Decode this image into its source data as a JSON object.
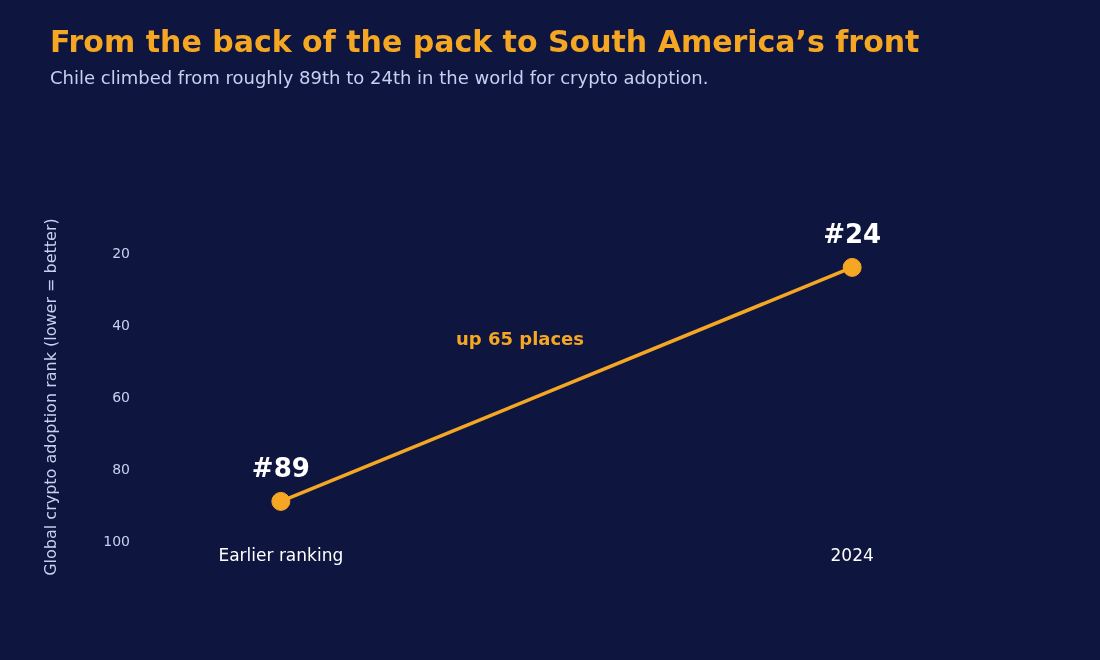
{
  "chart_data": {
    "type": "line",
    "title": "From the back of the pack to South America’s front",
    "subtitle": "Chile climbed from roughly 89th to 24th in the world for crypto adoption.",
    "ylabel": "Global crypto adoption rank (lower = better)",
    "categories": [
      "Earlier ranking",
      "2024"
    ],
    "series": [
      {
        "color": "#f5a623",
        "values": [
          89,
          24
        ],
        "value_labels": [
          "#89",
          "#24"
        ]
      }
    ],
    "ylim": [
      100,
      20
    ],
    "yticks": [
      20,
      40,
      60,
      80,
      100
    ],
    "marker": "circle",
    "line_style": "solid",
    "annotations": [
      "up 65 places"
    ]
  }
}
